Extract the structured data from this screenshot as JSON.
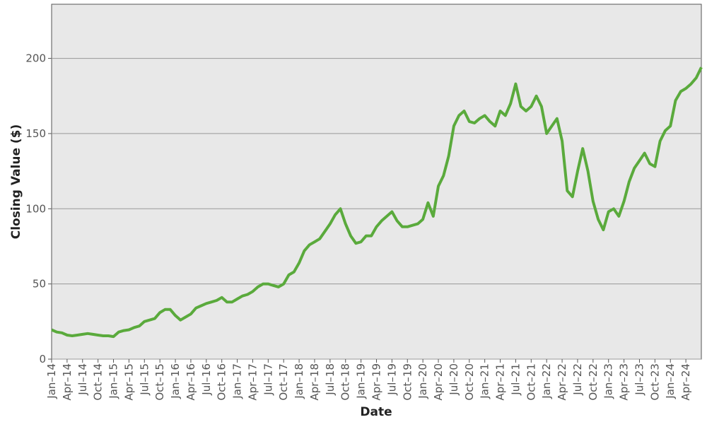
{
  "chart_data": {
    "type": "line",
    "x_label": "Date",
    "y_label": "Closing Value ($)",
    "x": [
      2014,
      2014.083,
      2014.167,
      2014.25,
      2014.333,
      2014.417,
      2014.5,
      2014.583,
      2014.667,
      2014.75,
      2014.833,
      2014.917,
      2015,
      2015.083,
      2015.167,
      2015.25,
      2015.333,
      2015.417,
      2015.5,
      2015.583,
      2015.667,
      2015.75,
      2015.833,
      2015.917,
      2016,
      2016.083,
      2016.167,
      2016.25,
      2016.333,
      2016.417,
      2016.5,
      2016.583,
      2016.667,
      2016.75,
      2016.833,
      2016.917,
      2017,
      2017.083,
      2017.167,
      2017.25,
      2017.333,
      2017.417,
      2017.5,
      2017.583,
      2017.667,
      2017.75,
      2017.833,
      2017.917,
      2018,
      2018.083,
      2018.167,
      2018.25,
      2018.333,
      2018.417,
      2018.5,
      2018.583,
      2018.667,
      2018.75,
      2018.833,
      2018.917,
      2019,
      2019.083,
      2019.167,
      2019.25,
      2019.333,
      2019.417,
      2019.5,
      2019.583,
      2019.667,
      2019.75,
      2019.833,
      2019.917,
      2020,
      2020.083,
      2020.167,
      2020.25,
      2020.333,
      2020.417,
      2020.5,
      2020.583,
      2020.667,
      2020.75,
      2020.833,
      2020.917,
      2021,
      2021.083,
      2021.167,
      2021.25,
      2021.333,
      2021.417,
      2021.5,
      2021.583,
      2021.667,
      2021.75,
      2021.833,
      2021.917,
      2022,
      2022.083,
      2022.167,
      2022.25,
      2022.333,
      2022.417,
      2022.5,
      2022.583,
      2022.667,
      2022.75,
      2022.833,
      2022.917,
      2023,
      2023.083,
      2023.167,
      2023.25,
      2023.333,
      2023.417,
      2023.5,
      2023.583,
      2023.667,
      2023.75,
      2023.833,
      2023.917,
      2024,
      2024.083,
      2024.167,
      2024.25,
      2024.333,
      2024.417,
      2024.5
    ],
    "series": [
      {
        "color": "#5aaa3c",
        "values": [
          19.5,
          18,
          17.5,
          16,
          15.5,
          16,
          16.5,
          17,
          16.5,
          16,
          15.5,
          15.5,
          15,
          18,
          19,
          19.5,
          21,
          22,
          25,
          26,
          27,
          31,
          33,
          33,
          29,
          26,
          28,
          30,
          34,
          35.5,
          37,
          38,
          39,
          41,
          38,
          38,
          40,
          42,
          43,
          45,
          48,
          50,
          50,
          49,
          48,
          50,
          56,
          58,
          64,
          72,
          76,
          78,
          80,
          85,
          90,
          96,
          100,
          90,
          82,
          77,
          78,
          82,
          82,
          88,
          92,
          95,
          98,
          92,
          88,
          88,
          89,
          90,
          93,
          104,
          95,
          115,
          122,
          135,
          155,
          162,
          165,
          158,
          157,
          160,
          162,
          158,
          155,
          165,
          162,
          170,
          183,
          168,
          165,
          168,
          175,
          168,
          150,
          155,
          160,
          145,
          112,
          108,
          125,
          140,
          125,
          105,
          93,
          86,
          98,
          100,
          95,
          105,
          118,
          127,
          132,
          137,
          130,
          128,
          145,
          152,
          155,
          172,
          178,
          180,
          183,
          187,
          194
        ]
      }
    ],
    "xlim": [
      2014,
      2024.5
    ],
    "xticks": [
      {
        "value": 2014,
        "label": "Jan–14"
      },
      {
        "value": 2014.25,
        "label": "Apr–14"
      },
      {
        "value": 2014.5,
        "label": "Jul–14"
      },
      {
        "value": 2014.75,
        "label": "Oct–14"
      },
      {
        "value": 2015,
        "label": "Jan–15"
      },
      {
        "value": 2015.25,
        "label": "Apr–15"
      },
      {
        "value": 2015.5,
        "label": "Jul–15"
      },
      {
        "value": 2015.75,
        "label": "Oct–15"
      },
      {
        "value": 2016,
        "label": "Jan–16"
      },
      {
        "value": 2016.25,
        "label": "Apr–16"
      },
      {
        "value": 2016.5,
        "label": "Jul–16"
      },
      {
        "value": 2016.75,
        "label": "Oct–16"
      },
      {
        "value": 2017,
        "label": "Jan–17"
      },
      {
        "value": 2017.25,
        "label": "Apr–17"
      },
      {
        "value": 2017.5,
        "label": "Jul–17"
      },
      {
        "value": 2017.75,
        "label": "Oct–17"
      },
      {
        "value": 2018,
        "label": "Jan–18"
      },
      {
        "value": 2018.25,
        "label": "Apr–18"
      },
      {
        "value": 2018.5,
        "label": "Jul–18"
      },
      {
        "value": 2018.75,
        "label": "Oct–18"
      },
      {
        "value": 2019,
        "label": "Jan–19"
      },
      {
        "value": 2019.25,
        "label": "Apr–19"
      },
      {
        "value": 2019.5,
        "label": "Jul–19"
      },
      {
        "value": 2019.75,
        "label": "Oct–19"
      },
      {
        "value": 2020,
        "label": "Jan–20"
      },
      {
        "value": 2020.25,
        "label": "Apr–20"
      },
      {
        "value": 2020.5,
        "label": "Jul–20"
      },
      {
        "value": 2020.75,
        "label": "Oct–20"
      },
      {
        "value": 2021,
        "label": "Jan–21"
      },
      {
        "value": 2021.25,
        "label": "Apr–21"
      },
      {
        "value": 2021.5,
        "label": "Jul–21"
      },
      {
        "value": 2021.75,
        "label": "Oct–21"
      },
      {
        "value": 2022,
        "label": "Jan–22"
      },
      {
        "value": 2022.25,
        "label": "Apr–22"
      },
      {
        "value": 2022.5,
        "label": "Jul–22"
      },
      {
        "value": 2022.75,
        "label": "Oct–22"
      },
      {
        "value": 2023,
        "label": "Jan–23"
      },
      {
        "value": 2023.25,
        "label": "Apr–23"
      },
      {
        "value": 2023.5,
        "label": "Jul–23"
      },
      {
        "value": 2023.75,
        "label": "Oct–23"
      },
      {
        "value": 2024,
        "label": "Jan–24"
      },
      {
        "value": 2024.25,
        "label": "Apr–24"
      }
    ],
    "ylim": [
      0,
      236
    ],
    "yticks": [
      0,
      50,
      100,
      150,
      200
    ],
    "grid": true
  }
}
